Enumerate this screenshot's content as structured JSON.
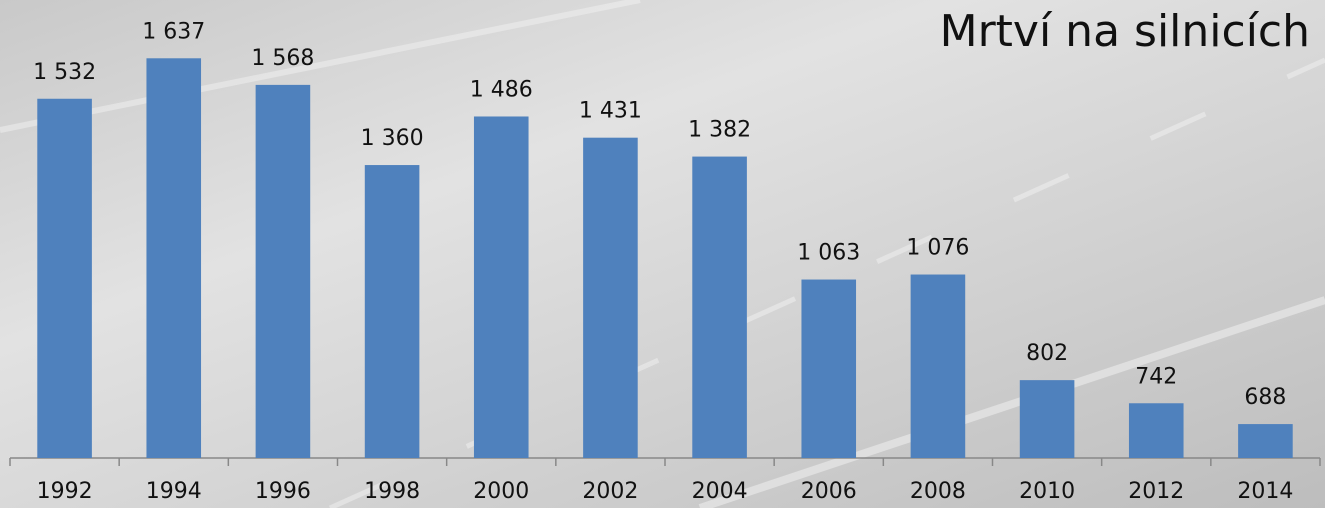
{
  "chart_data": {
    "type": "bar",
    "title": "Mrtví na silnicích",
    "categories": [
      "1992",
      "1994",
      "1996",
      "1998",
      "2000",
      "2002",
      "2004",
      "2006",
      "2008",
      "2010",
      "2012",
      "2014"
    ],
    "values": [
      1532,
      1637,
      1568,
      1360,
      1486,
      1431,
      1382,
      1063,
      1076,
      802,
      742,
      688
    ],
    "value_labels": [
      "1 532",
      "1 637",
      "1 568",
      "1 360",
      "1 486",
      "1 431",
      "1 382",
      "1 063",
      "1 076",
      "802",
      "742",
      "688"
    ],
    "color": "#4f81bd",
    "ylim": [
      600,
      1700
    ]
  }
}
